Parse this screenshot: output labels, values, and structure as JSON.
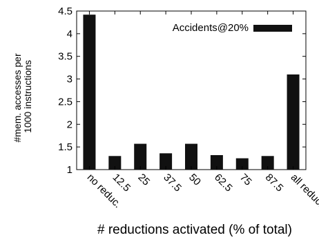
{
  "chart_data": {
    "type": "bar",
    "categories": [
      "no reduc.",
      "12.5",
      "25",
      "37.5",
      "50",
      "62.5",
      "75",
      "87.5",
      "all reduc."
    ],
    "series": [
      {
        "name": "Accidents@20%",
        "values": [
          4.42,
          1.3,
          1.57,
          1.36,
          1.57,
          1.32,
          1.25,
          1.3,
          3.1
        ]
      }
    ],
    "ylim": [
      1,
      4.5
    ],
    "yticks": [
      1,
      1.5,
      2,
      2.5,
      3,
      3.5,
      4,
      4.5
    ],
    "ytick_labels": [
      "1",
      "1.5",
      "2",
      "2.5",
      "3",
      "3.5",
      "4",
      "4.5"
    ],
    "xlabel": "# reductions activated  (% of total)",
    "ylabel_line1": "#mem. accesses per",
    "ylabel_line2": "1000 instructions",
    "legend_position": "top-right",
    "grid": false,
    "colors": {
      "bar": "#111111",
      "axis": "#000000"
    }
  }
}
